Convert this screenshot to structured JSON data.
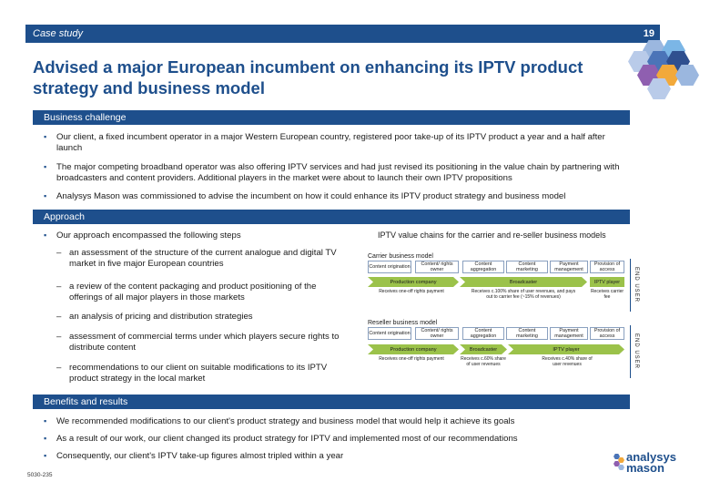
{
  "header": {
    "label": "Case study",
    "page_number": "19"
  },
  "title": "Advised a major European incumbent on enhancing its IPTV product strategy and business model",
  "hex_colors": [
    "#9bb7df",
    "#4b74b8",
    "#2f4f8f",
    "#8f5fb0",
    "#f2a93b",
    "#7bb6e6",
    "#b9cbe9"
  ],
  "business_challenge": {
    "heading": "Business challenge",
    "bullets": [
      "Our client, a fixed incumbent operator in a major Western European country, registered poor take-up of its IPTV product a year and a half after launch",
      "The major competing broadband operator was also offering IPTV services and had just revised its positioning in the value chain by partnering with broadcasters and content providers. Additional players in the market were about to launch their own IPTV propositions",
      "Analysys Mason was commissioned to advise the incumbent on how it could enhance its IPTV product strategy and business model"
    ]
  },
  "approach": {
    "heading": "Approach",
    "intro": "Our approach encompassed the following steps",
    "steps": [
      "an assessment of the structure of the current analogue and digital TV market in five major European countries",
      "a review of the content packaging and product positioning of the offerings of all major players in those markets",
      "an analysis of pricing and distribution strategies",
      "assessment of commercial terms under which players secure rights to distribute content",
      "recommendations to our client on suitable modifications to its IPTV product strategy in the local market"
    ]
  },
  "diagram": {
    "title": "IPTV value chains for the carrier and re-seller business models",
    "carrier": {
      "label": "Carrier business model",
      "stages": [
        "Content origination",
        "Content/ rights owner",
        "Content aggregation",
        "Content marketing",
        "Payment management",
        "Provision of access"
      ],
      "bars": [
        "Production company",
        "Broadcaster"
      ],
      "iptv_player": "IPTV player",
      "notes": [
        "Receives one-off rights payment",
        "Receives c.100% share of user revenues, and pays out to carrier fee (~15% of revenues)",
        "Receives carrier fee"
      ],
      "end_user": "END USER"
    },
    "reseller": {
      "label": "Reseller business model",
      "stages": [
        "Content origination",
        "Content/ rights owner",
        "Content aggregation",
        "Content marketing",
        "Payment management",
        "Provision of access"
      ],
      "bars": [
        "Production company",
        "Broadcaster",
        "IPTV player"
      ],
      "notes": [
        "Receives one-off rights payment",
        "Receives c.60% share of user revenues",
        "Receives c.40% share of user revenues"
      ],
      "end_user": "END USER"
    }
  },
  "benefits": {
    "heading": "Benefits and results",
    "bullets": [
      "We recommended modifications to our client's product strategy and business model that would help it achieve its goals",
      "As a result of our work, our client changed its product strategy for IPTV and implemented most of our recommendations",
      "Consequently, our client's IPTV take-up figures almost tripled within a year"
    ]
  },
  "footer": {
    "code": "5030-235",
    "logo_line1": "analysys",
    "logo_line2": "mason"
  }
}
